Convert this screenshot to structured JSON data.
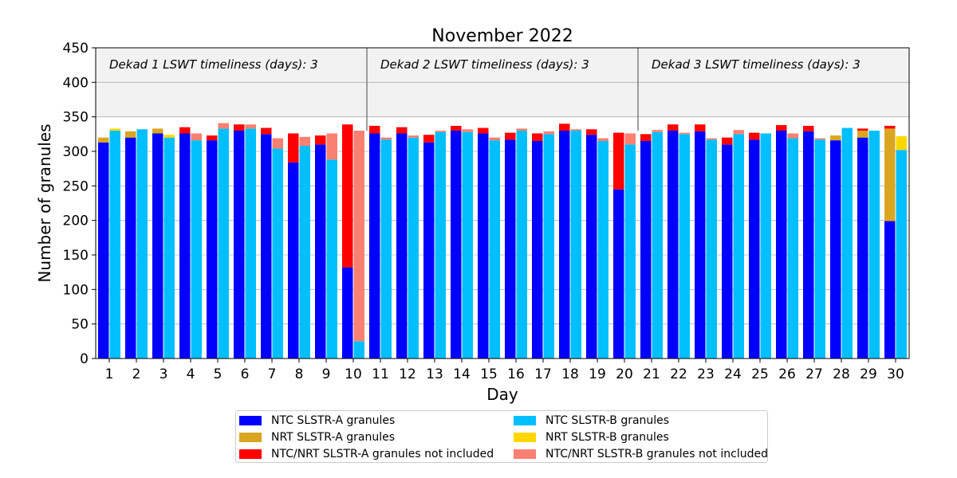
{
  "chart_data": {
    "type": "bar",
    "title": "November 2022",
    "xlabel": "Day",
    "ylabel": "Number of granules",
    "ylim": [
      0,
      450
    ],
    "yticks": [
      0,
      50,
      100,
      150,
      200,
      250,
      300,
      350,
      400,
      450
    ],
    "categories": [
      1,
      2,
      3,
      4,
      5,
      6,
      7,
      8,
      9,
      10,
      11,
      12,
      13,
      14,
      15,
      16,
      17,
      18,
      19,
      20,
      21,
      22,
      23,
      24,
      25,
      26,
      27,
      28,
      29,
      30
    ],
    "grid": "horizontal",
    "legend_position": "bottom",
    "dekads": [
      {
        "label": "Dekad 1 LSWT timeliness (days): 3"
      },
      {
        "label": "Dekad 2 LSWT timeliness (days): 3"
      },
      {
        "label": "Dekad 3 LSWT timeliness (days): 3"
      }
    ],
    "series": [
      {
        "name": "NTC SLSTR-A granules",
        "color": "#0000ff",
        "stack": "A",
        "values": [
          313,
          320,
          326,
          326,
          316,
          330,
          325,
          284,
          310,
          132,
          326,
          326,
          313,
          330,
          326,
          317,
          315,
          330,
          324,
          245,
          315,
          330,
          329,
          310,
          317,
          330,
          329,
          316,
          320,
          199
        ]
      },
      {
        "name": "NRT SLSTR-A granules",
        "color": "#daa520",
        "stack": "A",
        "values": [
          7,
          9,
          7,
          0,
          0,
          0,
          0,
          0,
          0,
          0,
          0,
          0,
          0,
          0,
          0,
          0,
          0,
          0,
          0,
          0,
          0,
          0,
          0,
          0,
          0,
          0,
          0,
          7,
          10,
          134
        ]
      },
      {
        "name": "NTC/NRT SLSTR-A granules not included",
        "color": "#ff0000",
        "stack": "A",
        "values": [
          0,
          0,
          0,
          9,
          7,
          9,
          9,
          42,
          13,
          207,
          11,
          9,
          11,
          7,
          8,
          10,
          11,
          10,
          8,
          82,
          10,
          9,
          10,
          10,
          10,
          8,
          8,
          0,
          3,
          4
        ]
      },
      {
        "name": "NTC SLSTR-B granules",
        "color": "#00bfff",
        "stack": "B",
        "values": [
          330,
          332,
          320,
          316,
          333,
          333,
          304,
          308,
          288,
          25,
          317,
          320,
          328,
          328,
          316,
          330,
          325,
          330,
          315,
          310,
          328,
          325,
          317,
          325,
          326,
          319,
          317,
          334,
          330,
          302
        ]
      },
      {
        "name": "NRT SLSTR-B granules",
        "color": "#ffd700",
        "stack": "B",
        "values": [
          3,
          0,
          4,
          0,
          0,
          0,
          0,
          0,
          0,
          0,
          0,
          0,
          0,
          0,
          0,
          0,
          0,
          0,
          0,
          0,
          0,
          0,
          0,
          0,
          0,
          0,
          0,
          0,
          0,
          20
        ]
      },
      {
        "name": "NTC/NRT SLSTR-B granules not included",
        "color": "#fa8072",
        "stack": "B",
        "values": [
          0,
          0,
          0,
          10,
          8,
          6,
          15,
          13,
          38,
          305,
          3,
          3,
          2,
          4,
          4,
          3,
          4,
          2,
          4,
          16,
          3,
          2,
          2,
          6,
          0,
          7,
          2,
          0,
          0,
          0
        ]
      }
    ]
  }
}
